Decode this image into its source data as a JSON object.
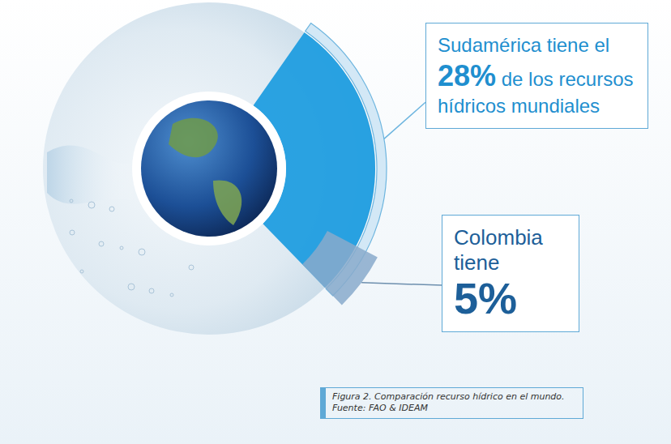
{
  "chart_data": {
    "type": "pie",
    "caption": "Figura 2. Comparación recurso hídrico en el mundo. Fuente: FAO & IDEAM",
    "values": [
      28,
      5
    ],
    "value_labels": [
      "28%",
      "5%"
    ],
    "colors": [
      "#1a9be0",
      "#88aacb"
    ],
    "annotations": [
      {
        "text_before": "Sudamérica tiene el",
        "text_after": "de los recursos hídricos mundiales"
      },
      {
        "text_before": "Colombia tiene"
      }
    ],
    "data_labels": true
  }
}
